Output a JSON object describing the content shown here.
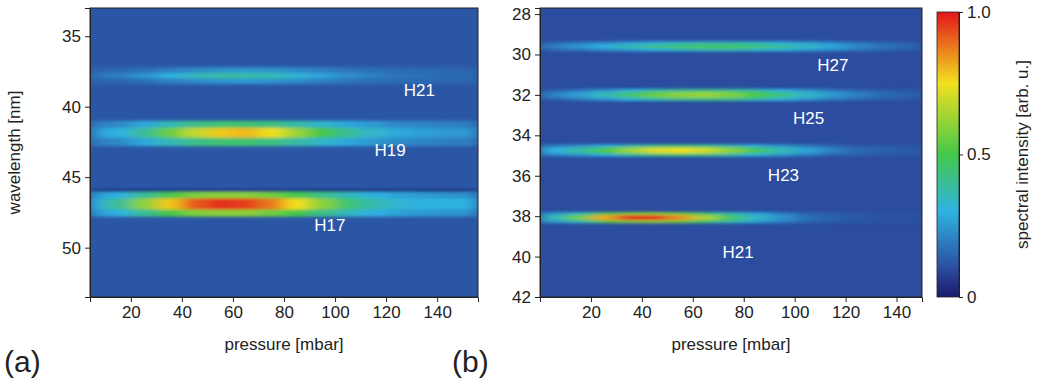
{
  "chart_data": [
    {
      "type": "heatmap",
      "panel_label": "(a)",
      "x_label": "pressure [mbar]",
      "y_label": "wavelength [nm]",
      "xlim": [
        4,
        156
      ],
      "xticks": [
        20,
        40,
        60,
        80,
        100,
        120,
        140
      ],
      "ylim": [
        33,
        53.5
      ],
      "yticks": [
        35,
        40,
        45,
        50
      ],
      "x_edges": [
        4,
        10,
        20,
        30,
        40,
        50,
        60,
        70,
        80,
        90,
        100,
        110,
        120,
        130,
        140,
        150,
        156
      ],
      "background": 0.12,
      "cells": [
        {
          "y": [
            37.2,
            38.4
          ],
          "values": [
            0.15,
            0.15,
            0.17,
            0.2,
            0.22,
            0.24,
            0.25,
            0.24,
            0.22,
            0.2,
            0.18,
            0.17,
            0.16,
            0.16,
            0.15,
            0.15
          ]
        },
        {
          "y": [
            37.6,
            38.0
          ],
          "values": [
            0.18,
            0.2,
            0.24,
            0.3,
            0.35,
            0.38,
            0.38,
            0.36,
            0.32,
            0.27,
            0.23,
            0.2,
            0.18,
            0.17,
            0.16,
            0.16
          ]
        },
        {
          "y": [
            41.0,
            42.8
          ],
          "values": [
            0.2,
            0.22,
            0.28,
            0.36,
            0.42,
            0.45,
            0.45,
            0.43,
            0.38,
            0.33,
            0.28,
            0.25,
            0.22,
            0.21,
            0.2,
            0.2
          ]
        },
        {
          "y": [
            41.5,
            42.2
          ],
          "values": [
            0.25,
            0.3,
            0.4,
            0.55,
            0.68,
            0.78,
            0.8,
            0.75,
            0.62,
            0.5,
            0.4,
            0.33,
            0.28,
            0.26,
            0.25,
            0.25
          ]
        },
        {
          "y": [
            46.0,
            47.8
          ],
          "values": [
            0.25,
            0.3,
            0.4,
            0.5,
            0.58,
            0.6,
            0.6,
            0.56,
            0.5,
            0.42,
            0.35,
            0.3,
            0.27,
            0.25,
            0.24,
            0.24
          ]
        },
        {
          "y": [
            46.5,
            47.3
          ],
          "values": [
            0.3,
            0.4,
            0.6,
            0.78,
            0.92,
            0.97,
            0.95,
            0.88,
            0.75,
            0.6,
            0.45,
            0.37,
            0.32,
            0.3,
            0.3,
            0.3
          ]
        },
        {
          "y": [
            45.85,
            46.05
          ],
          "values": [
            0.03,
            0.03,
            0.03,
            0.03,
            0.03,
            0.03,
            0.03,
            0.03,
            0.03,
            0.03,
            0.03,
            0.03,
            0.03,
            0.03,
            0.03,
            0.03
          ]
        }
      ],
      "annotations": [
        {
          "text": "H21",
          "x": 133,
          "y": 38.9
        },
        {
          "text": "H19",
          "x": 121.6,
          "y": 43.2
        },
        {
          "text": "H17",
          "x": 98,
          "y": 48.5
        }
      ]
    },
    {
      "type": "heatmap",
      "panel_label": "(b)",
      "x_label": "pressure [mbar]",
      "xlim": [
        0,
        150
      ],
      "xticks": [
        20,
        40,
        60,
        80,
        100,
        120,
        140
      ],
      "ylim": [
        27.7,
        42
      ],
      "yticks": [
        28,
        30,
        32,
        34,
        36,
        38,
        40,
        42
      ],
      "x_edges": [
        0,
        10,
        20,
        30,
        40,
        50,
        60,
        70,
        80,
        90,
        100,
        110,
        120,
        130,
        140,
        150
      ],
      "background": 0.1,
      "cells": [
        {
          "y": [
            29.35,
            29.85
          ],
          "values": [
            0.15,
            0.18,
            0.22,
            0.26,
            0.3,
            0.33,
            0.35,
            0.35,
            0.33,
            0.3,
            0.26,
            0.22,
            0.18,
            0.15,
            0.13
          ]
        },
        {
          "y": [
            29.5,
            29.7
          ],
          "values": [
            0.2,
            0.25,
            0.3,
            0.36,
            0.42,
            0.46,
            0.48,
            0.48,
            0.45,
            0.4,
            0.34,
            0.28,
            0.22,
            0.18,
            0.15
          ]
        },
        {
          "y": [
            31.7,
            32.3
          ],
          "values": [
            0.14,
            0.18,
            0.24,
            0.3,
            0.36,
            0.4,
            0.42,
            0.4,
            0.36,
            0.3,
            0.24,
            0.18,
            0.15,
            0.13,
            0.12
          ]
        },
        {
          "y": [
            31.85,
            32.15
          ],
          "values": [
            0.2,
            0.26,
            0.35,
            0.45,
            0.55,
            0.6,
            0.62,
            0.58,
            0.5,
            0.42,
            0.33,
            0.25,
            0.2,
            0.16,
            0.14
          ]
        },
        {
          "y": [
            34.45,
            35.05
          ],
          "values": [
            0.2,
            0.24,
            0.3,
            0.37,
            0.42,
            0.44,
            0.42,
            0.37,
            0.3,
            0.24,
            0.19,
            0.15,
            0.13,
            0.12,
            0.12
          ]
        },
        {
          "y": [
            34.6,
            34.9
          ],
          "values": [
            0.3,
            0.38,
            0.5,
            0.62,
            0.72,
            0.75,
            0.7,
            0.6,
            0.48,
            0.36,
            0.27,
            0.2,
            0.16,
            0.14,
            0.13
          ]
        },
        {
          "y": [
            37.8,
            38.35
          ],
          "values": [
            0.25,
            0.35,
            0.5,
            0.58,
            0.6,
            0.55,
            0.45,
            0.36,
            0.27,
            0.2,
            0.15,
            0.13,
            0.12,
            0.11,
            0.11
          ]
        },
        {
          "y": [
            37.95,
            38.2
          ],
          "values": [
            0.35,
            0.55,
            0.82,
            0.97,
            0.98,
            0.85,
            0.65,
            0.48,
            0.34,
            0.24,
            0.17,
            0.14,
            0.12,
            0.11,
            0.11
          ]
        }
      ],
      "annotations": [
        {
          "text": "H27",
          "x": 115,
          "y": 30.6
        },
        {
          "text": "H25",
          "x": 105.5,
          "y": 33.2
        },
        {
          "text": "H23",
          "x": 95.6,
          "y": 36.05
        },
        {
          "text": "H21",
          "x": 77.8,
          "y": 39.85
        }
      ]
    }
  ],
  "colorbar": {
    "label": "spectral intensity [arb. u.]",
    "range": [
      0,
      1
    ],
    "ticks": [
      0,
      0.5,
      {
        "value": 1,
        "label": "1.0"
      }
    ]
  }
}
